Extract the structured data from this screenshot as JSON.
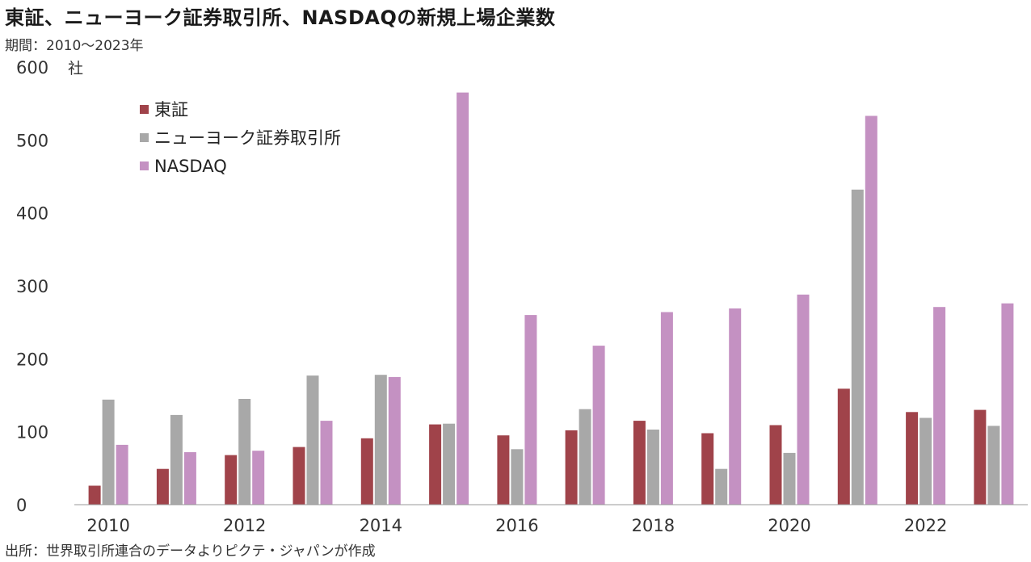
{
  "title": "東証、ニューヨーク証券取引所、NASDAQの新規上場企業数",
  "subtitle": "期間：2010～2023年",
  "source": "出所：世界取引所連合のデータよりピクテ・ジャパンが作成",
  "chart_data": {
    "type": "bar",
    "unit_label": "社",
    "categories": [
      "2010",
      "2011",
      "2012",
      "2013",
      "2014",
      "2015",
      "2016",
      "2017",
      "2018",
      "2019",
      "2020",
      "2021",
      "2022",
      "2023"
    ],
    "x_tick_labels": [
      "2010",
      "",
      "2012",
      "",
      "2014",
      "",
      "2016",
      "",
      "2018",
      "",
      "2020",
      "",
      "2022",
      ""
    ],
    "series": [
      {
        "name": "東証",
        "color": "#a0434a",
        "values": [
          26,
          49,
          68,
          79,
          91,
          110,
          95,
          102,
          115,
          98,
          109,
          159,
          127,
          130
        ]
      },
      {
        "name": "ニューヨーク証券取引所",
        "color": "#a8a8a8",
        "values": [
          144,
          123,
          145,
          177,
          178,
          111,
          76,
          131,
          103,
          49,
          71,
          432,
          119,
          108
        ]
      },
      {
        "name": "NASDAQ",
        "color": "#c491c2",
        "values": [
          82,
          72,
          74,
          115,
          175,
          565,
          260,
          218,
          264,
          269,
          288,
          533,
          271,
          276
        ]
      }
    ],
    "ylim": [
      0,
      600
    ],
    "y_ticks": [
      0,
      100,
      200,
      300,
      400,
      500,
      600
    ],
    "legend_position": "top-left",
    "grid": false
  }
}
